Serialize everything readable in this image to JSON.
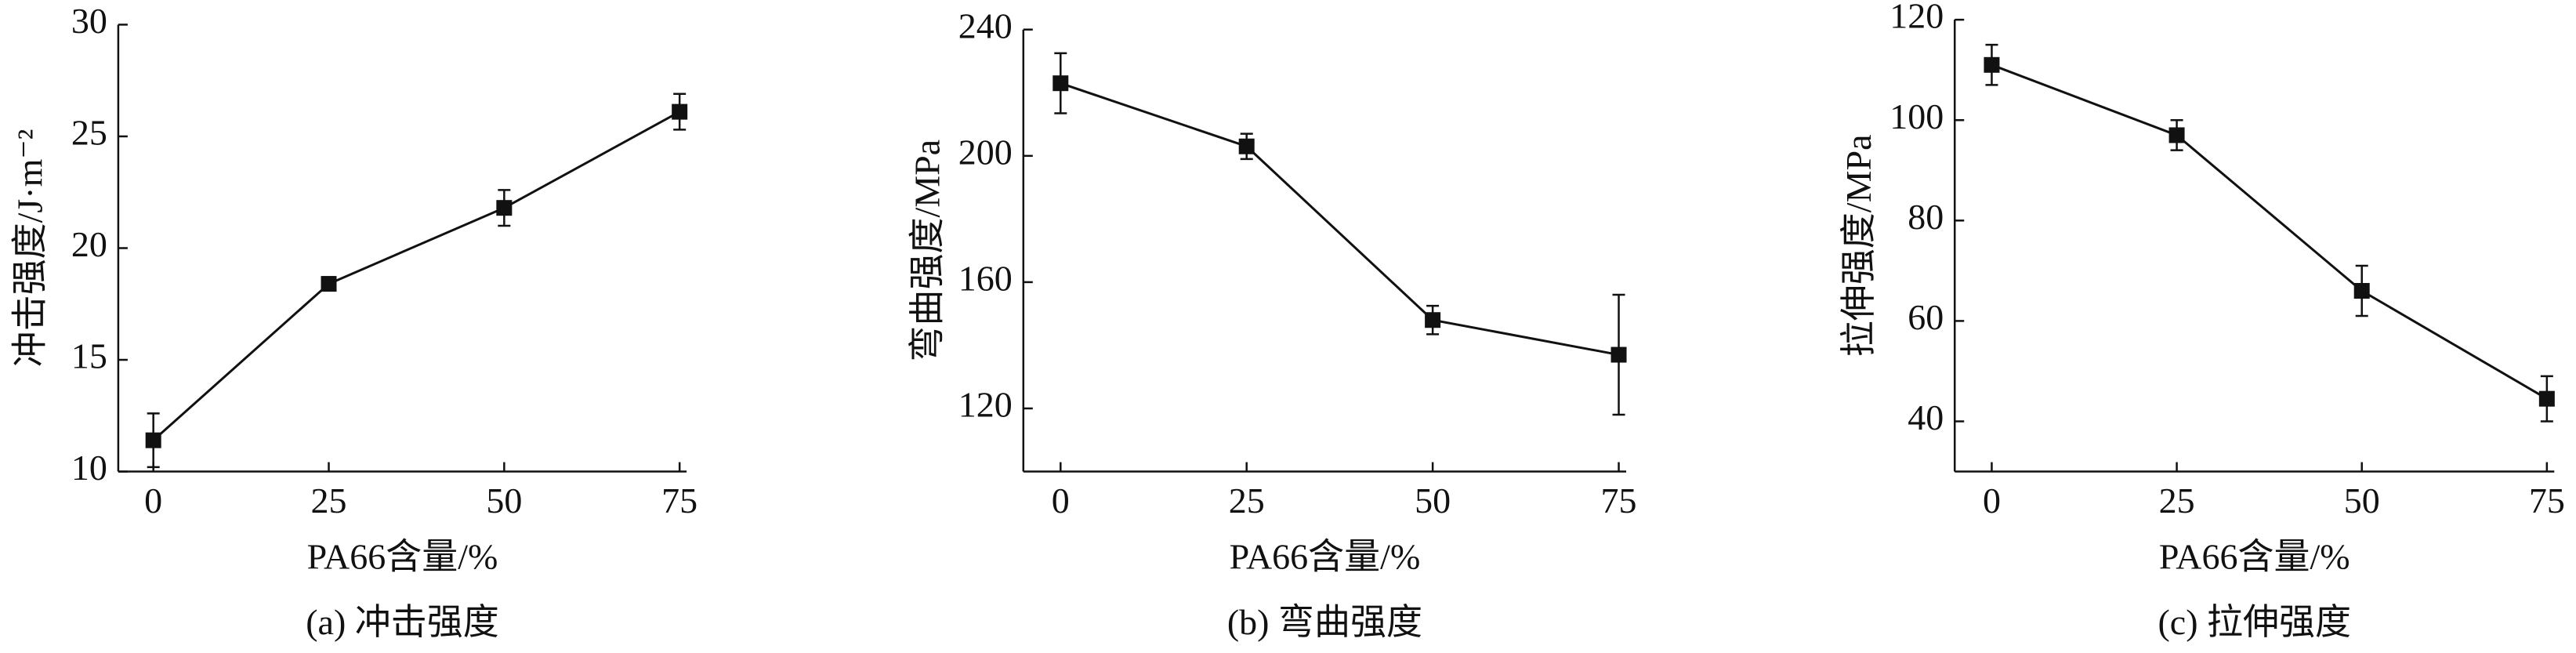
{
  "chart_data": [
    {
      "type": "line",
      "caption": "(a) 冲击强度",
      "xlabel": "PA66含量/%",
      "ylabel": "冲击强度/J·m⁻²",
      "x": [
        0,
        25,
        50,
        75
      ],
      "values": [
        11.4,
        18.4,
        21.8,
        26.1
      ],
      "errors": [
        1.2,
        0.3,
        0.8,
        0.8
      ],
      "color": "#111111",
      "xlim": [
        -5,
        76
      ],
      "ylim": [
        10,
        30
      ],
      "xticks": [
        0,
        25,
        50,
        75
      ],
      "yticks": [
        10,
        15,
        20,
        25,
        30
      ]
    },
    {
      "type": "line",
      "caption": "(b) 弯曲强度",
      "xlabel": "PA66含量/%",
      "ylabel": "弯曲强度/MPa",
      "x": [
        0,
        25,
        50,
        75
      ],
      "values": [
        223,
        203,
        148,
        137
      ],
      "errors": [
        9.5,
        4,
        4.5,
        19
      ],
      "color": "#111111",
      "xlim": [
        -5,
        76
      ],
      "ylim": [
        100,
        240
      ],
      "xticks": [
        0,
        25,
        50,
        75
      ],
      "yticks": [
        120,
        160,
        200,
        240
      ]
    },
    {
      "type": "line",
      "caption": "(c) 拉伸强度",
      "xlabel": "PA66含量/%",
      "ylabel": "拉伸强度/MPa",
      "x": [
        0,
        25,
        50,
        75
      ],
      "values": [
        111,
        97,
        66,
        44.5
      ],
      "errors": [
        4,
        3,
        5,
        4.5
      ],
      "color": "#111111",
      "xlim": [
        -5,
        76
      ],
      "ylim": [
        30,
        120
      ],
      "xticks": [
        0,
        25,
        50,
        75
      ],
      "yticks": [
        40,
        60,
        80,
        100,
        120
      ]
    }
  ]
}
